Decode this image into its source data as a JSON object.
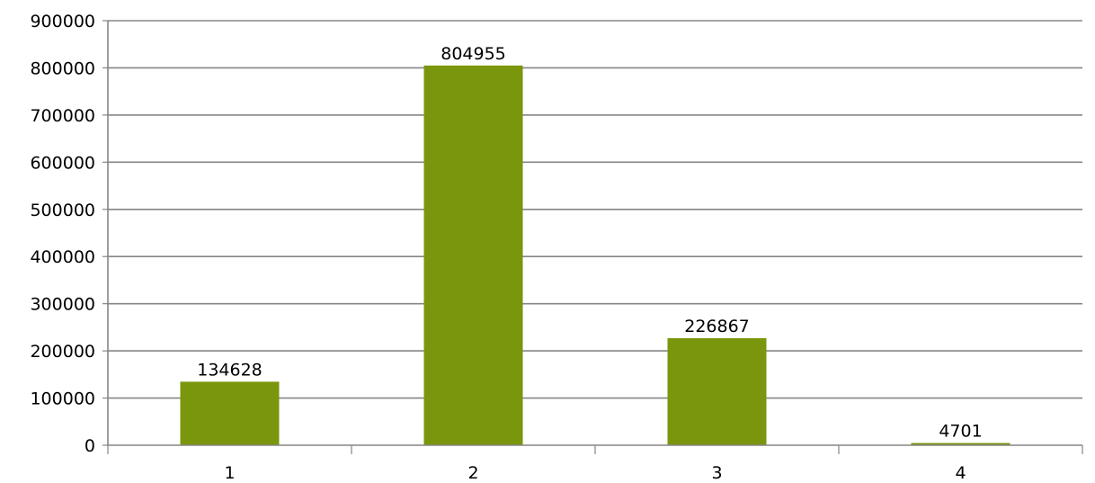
{
  "chart_data": {
    "type": "bar",
    "title": "",
    "xlabel": "",
    "ylabel": "",
    "categories": [
      "1",
      "2",
      "3",
      "4"
    ],
    "values": [
      134628,
      804955,
      226867,
      4701
    ],
    "data_labels": [
      "134628",
      "804955",
      "226867",
      "4701"
    ],
    "ylim": [
      0,
      900000
    ],
    "yticks": [
      0,
      100000,
      200000,
      300000,
      400000,
      500000,
      600000,
      700000,
      800000,
      900000
    ],
    "ytick_labels": [
      "0",
      "100000",
      "200000",
      "300000",
      "400000",
      "500000",
      "600000",
      "700000",
      "800000",
      "900000"
    ],
    "grid": true,
    "legend": "none",
    "colors": {
      "bar": "#7a960c",
      "grid": "#868686",
      "text": "#000000",
      "background": "#ffffff"
    }
  }
}
